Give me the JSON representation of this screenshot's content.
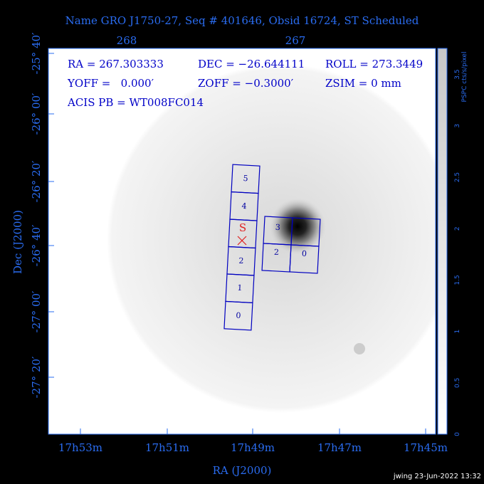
{
  "title": "Name GRO J1750-27, Seq # 401646, Obsid 16724, ST Scheduled",
  "top_axis": {
    "ticks": [
      "268",
      "267"
    ]
  },
  "left_axis": {
    "title": "Dec (J2000)",
    "ticks": [
      "-25° 40′",
      "-26° 00′",
      "-26° 20′",
      "-26° 40′",
      "-27° 00′",
      "-27° 20′"
    ]
  },
  "bottom_axis": {
    "title": "RA (J2000)",
    "ticks": [
      "17h53m",
      "17h51m",
      "17h49m",
      "17h47m",
      "17h45m"
    ]
  },
  "info": {
    "lines": [
      [
        "RA = 267.303333",
        "DEC = −26.644111",
        "ROLL = 273.3449"
      ],
      [
        "YOFF =   0.000′",
        "ZOFF = −0.3000′",
        "ZSIM = 0 mm"
      ],
      [
        "ACIS PB = WT008FC014"
      ]
    ]
  },
  "colorbar": {
    "label": "PSPC cts/s/pixel",
    "ticks": [
      "0",
      "0.5",
      "1",
      "1.5",
      "2",
      "2.5",
      "3",
      "3.5"
    ]
  },
  "chips": {
    "acis_s": [
      "5",
      "4",
      "2",
      "1",
      "0"
    ],
    "acis_i": [
      "3",
      "2",
      "0"
    ]
  },
  "aimpoint": "S",
  "footer": "jwing 23-Jun-2022 13:32"
}
